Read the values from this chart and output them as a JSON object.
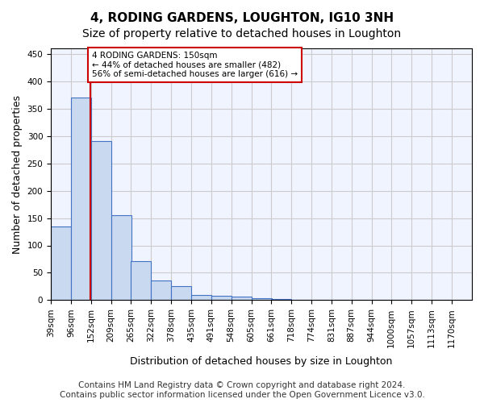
{
  "title": "4, RODING GARDENS, LOUGHTON, IG10 3NH",
  "subtitle": "Size of property relative to detached houses in Loughton",
  "xlabel": "Distribution of detached houses by size in Loughton",
  "ylabel": "Number of detached properties",
  "bin_labels": [
    "39sqm",
    "96sqm",
    "152sqm",
    "209sqm",
    "265sqm",
    "322sqm",
    "378sqm",
    "435sqm",
    "491sqm",
    "548sqm",
    "605sqm",
    "661sqm",
    "718sqm",
    "774sqm",
    "831sqm",
    "887sqm",
    "944sqm",
    "1000sqm",
    "1057sqm",
    "1113sqm",
    "1170sqm"
  ],
  "bin_edges": [
    39,
    96,
    152,
    209,
    265,
    322,
    378,
    435,
    491,
    548,
    605,
    661,
    718,
    774,
    831,
    887,
    944,
    1000,
    1057,
    1113,
    1170
  ],
  "bar_heights": [
    135,
    370,
    290,
    155,
    72,
    36,
    25,
    10,
    8,
    6,
    3,
    2,
    1,
    1,
    1,
    1,
    0,
    0,
    0,
    0
  ],
  "bar_color": "#c8d9f0",
  "bar_edge_color": "#4472c4",
  "property_size": 150,
  "property_line_color": "#cc0000",
  "annotation_text": "4 RODING GARDENS: 150sqm\n← 44% of detached houses are smaller (482)\n56% of semi-detached houses are larger (616) →",
  "annotation_box_color": "#cc0000",
  "ylim": [
    0,
    460
  ],
  "yticks": [
    0,
    50,
    100,
    150,
    200,
    250,
    300,
    350,
    400,
    450
  ],
  "grid_color": "#cccccc",
  "background_color": "#f0f4ff",
  "footer_text": "Contains HM Land Registry data © Crown copyright and database right 2024.\nContains public sector information licensed under the Open Government Licence v3.0.",
  "title_fontsize": 11,
  "subtitle_fontsize": 10,
  "xlabel_fontsize": 9,
  "ylabel_fontsize": 9,
  "tick_fontsize": 7.5,
  "footer_fontsize": 7.5
}
